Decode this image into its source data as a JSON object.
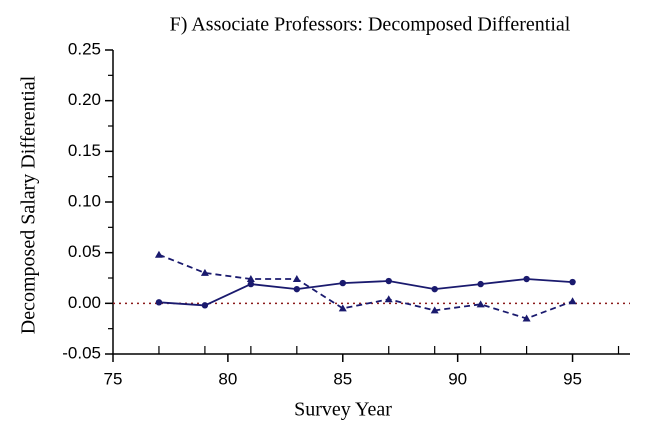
{
  "chart_data": {
    "type": "line",
    "title": "F)  Associate Professors:  Decomposed Differential",
    "x_label": "Survey Year",
    "y_label": "Decomposed Salary Differential",
    "x": [
      77,
      79,
      81,
      83,
      85,
      87,
      89,
      91,
      93,
      95
    ],
    "series": [
      {
        "color": "#1a1a6e",
        "style": "solid",
        "marker": "circle",
        "values": [
          0.001,
          -0.002,
          0.019,
          0.014,
          0.02,
          0.022,
          0.014,
          0.019,
          0.024,
          0.021
        ]
      },
      {
        "color": "#1a1a6e",
        "style": "dashed",
        "marker": "triangle",
        "values": [
          0.048,
          0.03,
          0.024,
          0.024,
          -0.005,
          0.004,
          -0.007,
          -0.001,
          -0.015,
          0.002
        ]
      }
    ],
    "xlim": [
      75,
      97.5
    ],
    "xticks": [
      75,
      80,
      85,
      90,
      95
    ],
    "xminor_ticks": [
      77,
      79,
      81,
      83,
      87,
      89,
      91,
      93,
      97
    ],
    "ylim": [
      -0.05,
      0.25
    ],
    "yticks": [
      -0.05,
      {
        "value": 0,
        "label": "0.00"
      },
      0.05,
      {
        "value": 0.1,
        "label": "0.10"
      },
      0.15,
      {
        "value": 0.2,
        "label": "0.20"
      },
      0.25
    ],
    "yminor_ticks": [
      -0.025,
      0.025,
      0.075,
      0.125,
      0.175,
      0.225
    ],
    "reference_line": {
      "value": 0,
      "color": "#8b1a1a"
    }
  }
}
